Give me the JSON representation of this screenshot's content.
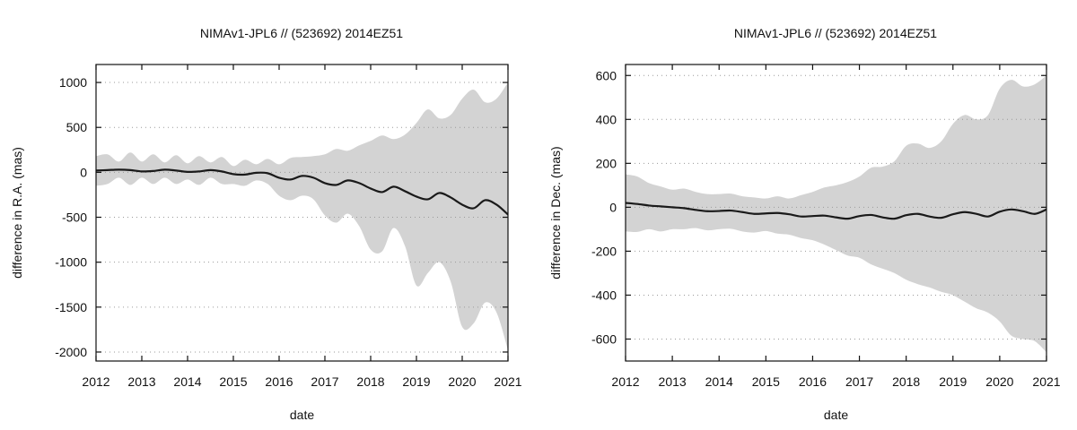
{
  "chart_data": [
    {
      "type": "area",
      "title": "NIMAv1-JPL6 // (523692) 2014EZ51",
      "xlabel": "date",
      "ylabel": "difference in R.A. (mas)",
      "xlim": [
        2012,
        2021
      ],
      "ylim": [
        -2100,
        1200
      ],
      "x_ticks": [
        "2012",
        "2013",
        "2014",
        "2015",
        "2016",
        "2017",
        "2018",
        "2019",
        "2020",
        "2021"
      ],
      "y_ticks": [
        -2000,
        -1500,
        -1000,
        -500,
        0,
        500,
        1000
      ],
      "grid": "horizontal dotted",
      "series": [
        {
          "name": "difference",
          "x": [
            2012,
            2012.25,
            2012.5,
            2012.75,
            2013,
            2013.25,
            2013.5,
            2013.75,
            2014,
            2014.25,
            2014.5,
            2014.75,
            2015,
            2015.25,
            2015.5,
            2015.75,
            2016,
            2016.25,
            2016.5,
            2016.75,
            2017,
            2017.25,
            2017.5,
            2017.75,
            2018,
            2018.25,
            2018.5,
            2018.75,
            2019,
            2019.25,
            2019.5,
            2019.75,
            2020,
            2020.25,
            2020.5,
            2020.75,
            2021
          ],
          "y": [
            20,
            25,
            30,
            25,
            10,
            15,
            30,
            20,
            5,
            10,
            25,
            10,
            -20,
            -25,
            -5,
            -10,
            -60,
            -80,
            -40,
            -60,
            -120,
            -140,
            -90,
            -120,
            -180,
            -220,
            -160,
            -210,
            -270,
            -300,
            -230,
            -280,
            -360,
            -400,
            -310,
            -360,
            -470
          ]
        },
        {
          "name": "uncertainty upper",
          "x": [
            2012,
            2012.25,
            2012.5,
            2012.75,
            2013,
            2013.25,
            2013.5,
            2013.75,
            2014,
            2014.25,
            2014.5,
            2014.75,
            2015,
            2015.25,
            2015.5,
            2015.75,
            2016,
            2016.25,
            2016.5,
            2016.75,
            2017,
            2017.25,
            2017.5,
            2017.75,
            2018,
            2018.25,
            2018.5,
            2018.75,
            2019,
            2019.25,
            2019.5,
            2019.75,
            2020,
            2020.25,
            2020.5,
            2020.75,
            2021
          ],
          "y": [
            180,
            200,
            120,
            220,
            120,
            200,
            110,
            190,
            100,
            180,
            110,
            170,
            70,
            140,
            90,
            150,
            90,
            160,
            170,
            180,
            200,
            260,
            240,
            300,
            350,
            410,
            370,
            420,
            550,
            700,
            600,
            640,
            820,
            920,
            780,
            820,
            1000
          ]
        },
        {
          "name": "uncertainty lower",
          "x": [
            2012,
            2012.25,
            2012.5,
            2012.75,
            2013,
            2013.25,
            2013.5,
            2013.75,
            2014,
            2014.25,
            2014.5,
            2014.75,
            2015,
            2015.25,
            2015.5,
            2015.75,
            2016,
            2016.25,
            2016.5,
            2016.75,
            2017,
            2017.25,
            2017.5,
            2017.75,
            2018,
            2018.25,
            2018.5,
            2018.75,
            2019,
            2019.25,
            2019.5,
            2019.75,
            2020,
            2020.25,
            2020.5,
            2020.75,
            2021
          ],
          "y": [
            -150,
            -130,
            -60,
            -140,
            -60,
            -130,
            -60,
            -130,
            -80,
            -140,
            -60,
            -130,
            -130,
            -150,
            -90,
            -130,
            -260,
            -310,
            -260,
            -300,
            -480,
            -560,
            -460,
            -600,
            -860,
            -880,
            -620,
            -820,
            -1260,
            -1120,
            -1000,
            -1220,
            -1720,
            -1680,
            -1450,
            -1560,
            -1980
          ]
        }
      ]
    },
    {
      "type": "area",
      "title": "NIMAv1-JPL6 // (523692) 2014EZ51",
      "xlabel": "date",
      "ylabel": "difference in Dec. (mas)",
      "xlim": [
        2012,
        2021
      ],
      "ylim": [
        -700,
        650
      ],
      "x_ticks": [
        "2012",
        "2013",
        "2014",
        "2015",
        "2016",
        "2017",
        "2018",
        "2019",
        "2020",
        "2021"
      ],
      "y_ticks": [
        -600,
        -400,
        -200,
        0,
        200,
        400,
        600
      ],
      "grid": "horizontal dotted",
      "series": [
        {
          "name": "difference",
          "x": [
            2012,
            2012.25,
            2012.5,
            2012.75,
            2013,
            2013.25,
            2013.5,
            2013.75,
            2014,
            2014.25,
            2014.5,
            2014.75,
            2015,
            2015.25,
            2015.5,
            2015.75,
            2016,
            2016.25,
            2016.5,
            2016.75,
            2017,
            2017.25,
            2017.5,
            2017.75,
            2018,
            2018.25,
            2018.5,
            2018.75,
            2019,
            2019.25,
            2019.5,
            2019.75,
            2020,
            2020.25,
            2020.5,
            2020.75,
            2021
          ],
          "y": [
            20,
            15,
            8,
            4,
            0,
            -4,
            -12,
            -18,
            -17,
            -15,
            -22,
            -30,
            -28,
            -26,
            -32,
            -42,
            -40,
            -38,
            -46,
            -52,
            -40,
            -35,
            -46,
            -52,
            -36,
            -30,
            -42,
            -48,
            -32,
            -22,
            -30,
            -42,
            -20,
            -10,
            -18,
            -30,
            -10
          ]
        },
        {
          "name": "uncertainty upper",
          "x": [
            2012,
            2012.25,
            2012.5,
            2012.75,
            2013,
            2013.25,
            2013.5,
            2013.75,
            2014,
            2014.25,
            2014.5,
            2014.75,
            2015,
            2015.25,
            2015.5,
            2015.75,
            2016,
            2016.25,
            2016.5,
            2016.75,
            2017,
            2017.25,
            2017.5,
            2017.75,
            2018,
            2018.25,
            2018.5,
            2018.75,
            2019,
            2019.25,
            2019.5,
            2019.75,
            2020,
            2020.25,
            2020.5,
            2020.75,
            2021
          ],
          "y": [
            150,
            140,
            110,
            95,
            80,
            85,
            70,
            60,
            60,
            62,
            50,
            45,
            40,
            50,
            40,
            55,
            70,
            90,
            100,
            115,
            140,
            180,
            185,
            210,
            280,
            290,
            270,
            300,
            380,
            420,
            400,
            420,
            540,
            580,
            550,
            560,
            600
          ]
        },
        {
          "name": "uncertainty lower",
          "x": [
            2012,
            2012.25,
            2012.5,
            2012.75,
            2013,
            2013.25,
            2013.5,
            2013.75,
            2014,
            2014.25,
            2014.5,
            2014.75,
            2015,
            2015.25,
            2015.5,
            2015.75,
            2016,
            2016.25,
            2016.5,
            2016.75,
            2017,
            2017.25,
            2017.5,
            2017.75,
            2018,
            2018.25,
            2018.5,
            2018.75,
            2019,
            2019.25,
            2019.5,
            2019.75,
            2020,
            2020.25,
            2020.5,
            2020.75,
            2021
          ],
          "y": [
            -110,
            -112,
            -100,
            -110,
            -100,
            -100,
            -95,
            -105,
            -100,
            -98,
            -110,
            -115,
            -108,
            -120,
            -125,
            -140,
            -150,
            -170,
            -195,
            -220,
            -230,
            -260,
            -280,
            -300,
            -330,
            -350,
            -365,
            -385,
            -400,
            -430,
            -460,
            -480,
            -520,
            -585,
            -600,
            -610,
            -660
          ]
        }
      ]
    }
  ]
}
